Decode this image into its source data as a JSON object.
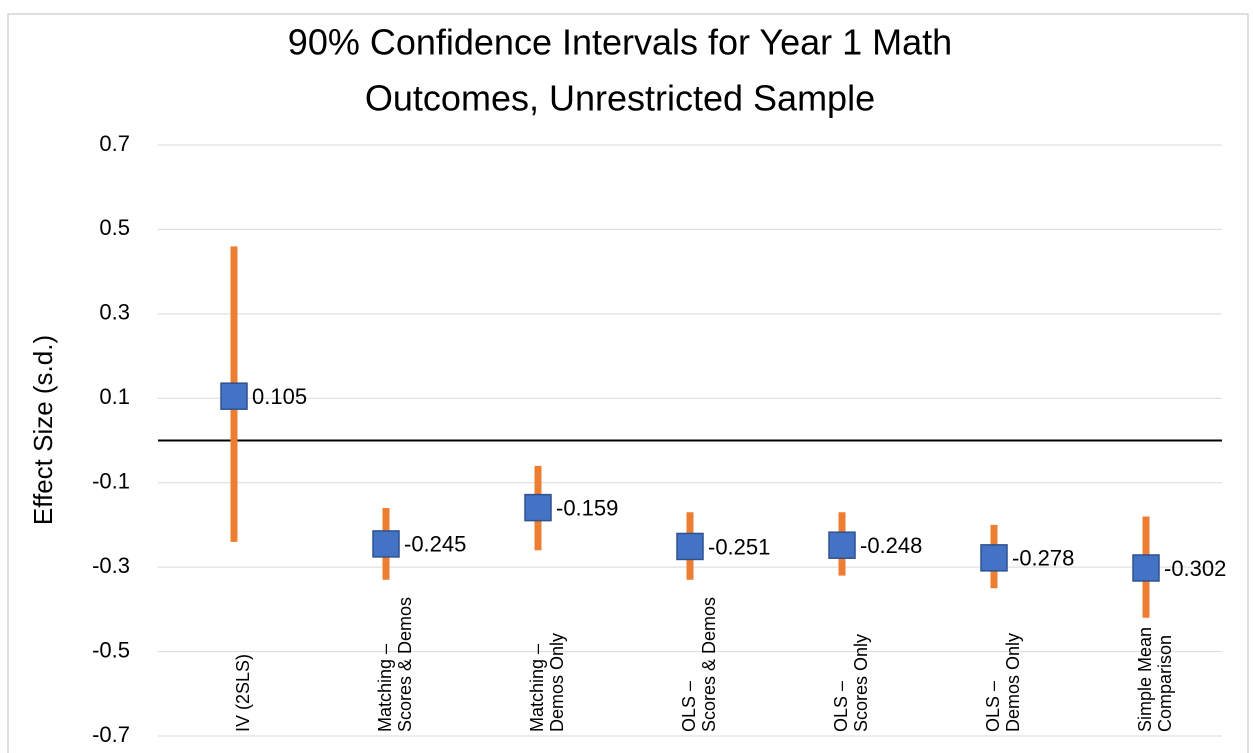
{
  "chart_data": {
    "type": "interval",
    "title": [
      "90% Confidence Intervals for Year 1 Math",
      "Outcomes, Unrestricted Sample"
    ],
    "y_label": "Effect Size (s.d.)",
    "categories": [
      [
        "IV (2SLS)"
      ],
      [
        "Matching –",
        "Scores & Demos"
      ],
      [
        "Matching –",
        "Demos Only"
      ],
      [
        "OLS –",
        "Scores & Demos"
      ],
      [
        "OLS –",
        "Scores Only"
      ],
      [
        "OLS –",
        "Demos Only"
      ],
      [
        "Simple Mean",
        "Comparison"
      ]
    ],
    "estimates": [
      0.105,
      -0.245,
      -0.159,
      -0.251,
      -0.248,
      -0.278,
      -0.302
    ],
    "lower": [
      -0.24,
      -0.33,
      -0.26,
      -0.33,
      -0.32,
      -0.35,
      -0.42
    ],
    "upper": [
      0.46,
      -0.16,
      -0.06,
      -0.17,
      -0.17,
      -0.2,
      -0.18
    ],
    "point_color": "#4472c4",
    "interval_color": "#ed7d31",
    "ylim": [
      -0.7,
      0.7
    ],
    "yticks": [
      -0.7,
      -0.5,
      -0.3,
      -0.1,
      0.1,
      0.3,
      0.5,
      0.7
    ],
    "grid": true
  }
}
